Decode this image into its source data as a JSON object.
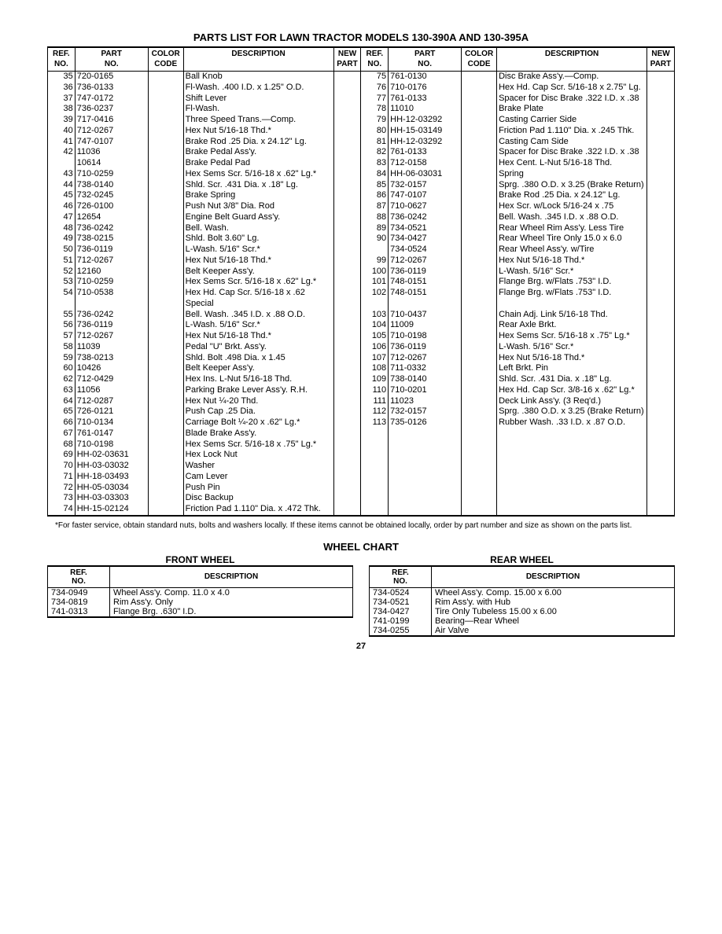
{
  "title": "PARTS LIST FOR LAWN TRACTOR MODELS 130-390A AND 130-395A",
  "headers": {
    "ref": "REF.\nNO.",
    "part": "PART\nNO.",
    "color": "COLOR\nCODE",
    "desc": "DESCRIPTION",
    "new": "NEW\nPART"
  },
  "left_rows": [
    {
      "ref": "35",
      "part": "720-0165",
      "desc": "Ball Knob"
    },
    {
      "ref": "36",
      "part": "736-0133",
      "desc": "Fl-Wash. .400 I.D. x 1.25\" O.D."
    },
    {
      "ref": "37",
      "part": "747-0172",
      "desc": "Shift Lever"
    },
    {
      "ref": "38",
      "part": "736-0237",
      "desc": "Fl-Wash."
    },
    {
      "ref": "39",
      "part": "717-0416",
      "desc": "Three Speed Trans.—Comp."
    },
    {
      "ref": "40",
      "part": "712-0267",
      "desc": "Hex Nut 5/16-18 Thd.*"
    },
    {
      "ref": "41",
      "part": "747-0107",
      "desc": "Brake Rod .25 Dia. x 24.12\" Lg."
    },
    {
      "ref": "42",
      "part": "11036",
      "desc": "Brake Pedal Ass'y."
    },
    {
      "ref": "",
      "part": "10614",
      "desc": "Brake Pedal Pad"
    },
    {
      "ref": "43",
      "part": "710-0259",
      "desc": "Hex Sems Scr. 5/16-18 x .62\" Lg.*"
    },
    {
      "ref": "44",
      "part": "738-0140",
      "desc": "Shld. Scr. .431 Dia. x .18\" Lg."
    },
    {
      "ref": "45",
      "part": "732-0245",
      "desc": "Brake Spring"
    },
    {
      "ref": "46",
      "part": "726-0100",
      "desc": "Push Nut 3/8\" Dia. Rod"
    },
    {
      "ref": "47",
      "part": "12654",
      "desc": "Engine Belt Guard Ass'y."
    },
    {
      "ref": "48",
      "part": "736-0242",
      "desc": "Bell. Wash."
    },
    {
      "ref": "49",
      "part": "738-0215",
      "desc": "Shld. Bolt 3.60\" Lg."
    },
    {
      "ref": "50",
      "part": "736-0119",
      "desc": "L-Wash. 5/16\" Scr.*"
    },
    {
      "ref": "51",
      "part": "712-0267",
      "desc": "Hex Nut 5/16-18 Thd.*"
    },
    {
      "ref": "52",
      "part": "12160",
      "desc": "Belt Keeper Ass'y."
    },
    {
      "ref": "53",
      "part": "710-0259",
      "desc": "Hex Sems Scr. 5/16-18 x .62\" Lg.*"
    },
    {
      "ref": "54",
      "part": "710-0538",
      "desc": "Hex Hd. Cap Scr. 5/16-18 x .62 Special"
    },
    {
      "ref": "55",
      "part": "736-0242",
      "desc": "Bell. Wash. .345 I.D. x .88 O.D."
    },
    {
      "ref": "56",
      "part": "736-0119",
      "desc": "L-Wash. 5/16\" Scr.*"
    },
    {
      "ref": "57",
      "part": "712-0267",
      "desc": "Hex Nut 5/16-18 Thd.*"
    },
    {
      "ref": "58",
      "part": "11039",
      "desc": "Pedal \"U\" Brkt. Ass'y."
    },
    {
      "ref": "59",
      "part": "738-0213",
      "desc": "Shld. Bolt .498 Dia. x 1.45"
    },
    {
      "ref": "60",
      "part": "10426",
      "desc": "Belt Keeper Ass'y."
    },
    {
      "ref": "62",
      "part": "712-0429",
      "desc": "Hex Ins. L-Nut 5/16-18 Thd."
    },
    {
      "ref": "63",
      "part": "11056",
      "desc": "Parking Brake Lever Ass'y. R.H."
    },
    {
      "ref": "64",
      "part": "712-0287",
      "desc": "Hex Nut ¼-20 Thd."
    },
    {
      "ref": "65",
      "part": "726-0121",
      "desc": "Push Cap .25 Dia."
    },
    {
      "ref": "66",
      "part": "710-0134",
      "desc": "Carriage Bolt ¼-20 x .62\" Lg.*"
    },
    {
      "ref": "67",
      "part": "761-0147",
      "desc": "Blade Brake Ass'y."
    },
    {
      "ref": "68",
      "part": "710-0198",
      "desc": "Hex Sems Scr. 5/16-18 x .75\" Lg.*"
    },
    {
      "ref": "69",
      "part": "HH-02-03631",
      "desc": "Hex Lock Nut"
    },
    {
      "ref": "70",
      "part": "HH-03-03032",
      "desc": "Washer"
    },
    {
      "ref": "71",
      "part": "HH-18-03493",
      "desc": "Cam Lever"
    },
    {
      "ref": "72",
      "part": "HH-05-03034",
      "desc": "Push Pin"
    },
    {
      "ref": "73",
      "part": "HH-03-03303",
      "desc": "Disc Backup"
    },
    {
      "ref": "74",
      "part": "HH-15-02124",
      "desc": "Friction Pad 1.110\" Dia. x .472 Thk."
    }
  ],
  "right_rows": [
    {
      "ref": "75",
      "part": "761-0130",
      "desc": "Disc Brake Ass'y.—Comp."
    },
    {
      "ref": "76",
      "part": "710-0176",
      "desc": "Hex Hd. Cap Scr. 5/16-18 x 2.75\" Lg."
    },
    {
      "ref": "77",
      "part": "761-0133",
      "desc": "Spacer for Disc Brake .322 I.D. x .38"
    },
    {
      "ref": "78",
      "part": "11010",
      "desc": "Brake Plate"
    },
    {
      "ref": "79",
      "part": "HH-12-03292",
      "desc": "Casting Carrier Side"
    },
    {
      "ref": "80",
      "part": "HH-15-03149",
      "desc": "Friction Pad 1.110\" Dia. x .245 Thk."
    },
    {
      "ref": "81",
      "part": "HH-12-03292",
      "desc": "Casting Cam Side"
    },
    {
      "ref": "82",
      "part": "761-0133",
      "desc": "Spacer for Disc Brake .322 I.D. x .38"
    },
    {
      "ref": "83",
      "part": "712-0158",
      "desc": "Hex Cent. L-Nut 5/16-18 Thd."
    },
    {
      "ref": "84",
      "part": "HH-06-03031",
      "desc": "Spring"
    },
    {
      "ref": "85",
      "part": "732-0157",
      "desc": "Sprg. .380 O.D. x 3.25 (Brake Return)"
    },
    {
      "ref": "86",
      "part": "747-0107",
      "desc": "Brake Rod .25 Dia. x 24.12\" Lg."
    },
    {
      "ref": "87",
      "part": "710-0627",
      "desc": "Hex Scr. w/Lock 5/16-24 x .75"
    },
    {
      "ref": "88",
      "part": "736-0242",
      "desc": "Bell. Wash. .345 I.D. x .88 O.D."
    },
    {
      "ref": "89",
      "part": "734-0521",
      "desc": "Rear Wheel Rim Ass'y. Less Tire"
    },
    {
      "ref": "90",
      "part": "734-0427",
      "desc": "Rear Wheel Tire Only 15.0 x 6.0"
    },
    {
      "ref": "",
      "part": "734-0524",
      "desc": "Rear Wheel Ass'y. w/Tire"
    },
    {
      "ref": "99",
      "part": "712-0267",
      "desc": "Hex Nut 5/16-18 Thd.*"
    },
    {
      "ref": "100",
      "part": "736-0119",
      "desc": "L-Wash. 5/16\" Scr.*"
    },
    {
      "ref": "101",
      "part": "748-0151",
      "desc": "Flange Brg. w/Flats .753\" I.D."
    },
    {
      "ref": "102",
      "part": "748-0151",
      "desc": "Flange Brg. w/Flats .753\" I.D."
    },
    {
      "ref": "103",
      "part": "710-0437",
      "desc": "Chain Adj. Link 5/16-18 Thd."
    },
    {
      "ref": "104",
      "part": "11009",
      "desc": "Rear Axle Brkt."
    },
    {
      "ref": "105",
      "part": "710-0198",
      "desc": "Hex Sems Scr. 5/16-18 x .75\" Lg.*"
    },
    {
      "ref": "106",
      "part": "736-0119",
      "desc": "L-Wash. 5/16\" Scr.*"
    },
    {
      "ref": "107",
      "part": "712-0267",
      "desc": "Hex Nut 5/16-18 Thd.*"
    },
    {
      "ref": "108",
      "part": "711-0332",
      "desc": "Left Brkt. Pin"
    },
    {
      "ref": "109",
      "part": "738-0140",
      "desc": "Shld. Scr. .431 Dia. x .18\" Lg."
    },
    {
      "ref": "110",
      "part": "710-0201",
      "desc": "Hex Hd. Cap Scr. 3/8-16 x .62\" Lg.*"
    },
    {
      "ref": "111",
      "part": "11023",
      "desc": "Deck Link Ass'y. (3 Req'd.)"
    },
    {
      "ref": "112",
      "part": "732-0157",
      "desc": "Sprg. .380 O.D. x 3.25 (Brake Return)"
    },
    {
      "ref": "113",
      "part": "735-0126",
      "desc": "Rubber Wash. .33 I.D. x .87 O.D."
    }
  ],
  "footnote": "*For faster service, obtain standard nuts, bolts and washers locally. If these items cannot be obtained locally, order by part number and size as shown on the parts list.",
  "wheel_chart_title": "WHEEL CHART",
  "front_wheel_title": "FRONT WHEEL",
  "rear_wheel_title": "REAR WHEEL",
  "wheel_headers": {
    "ref": "REF.\nNO.",
    "desc": "DESCRIPTION"
  },
  "front_wheel_rows": [
    {
      "ref": "734-0949",
      "desc": "Wheel Ass'y. Comp. 11.0 x 4.0"
    },
    {
      "ref": "734-0819",
      "desc": "Rim Ass'y. Only"
    },
    {
      "ref": "741-0313",
      "desc": "Flange Brg. .630\" I.D."
    }
  ],
  "rear_wheel_rows": [
    {
      "ref": "734-0524",
      "desc": "Wheel Ass'y. Comp. 15.00 x 6.00"
    },
    {
      "ref": "734-0521",
      "desc": "Rim Ass'y. with Hub"
    },
    {
      "ref": "734-0427",
      "desc": "Tire Only Tubeless 15.00 x 6.00"
    },
    {
      "ref": "741-0199",
      "desc": "Bearing—Rear Wheel"
    },
    {
      "ref": "734-0255",
      "desc": "Air Valve"
    }
  ],
  "page_number": "27"
}
